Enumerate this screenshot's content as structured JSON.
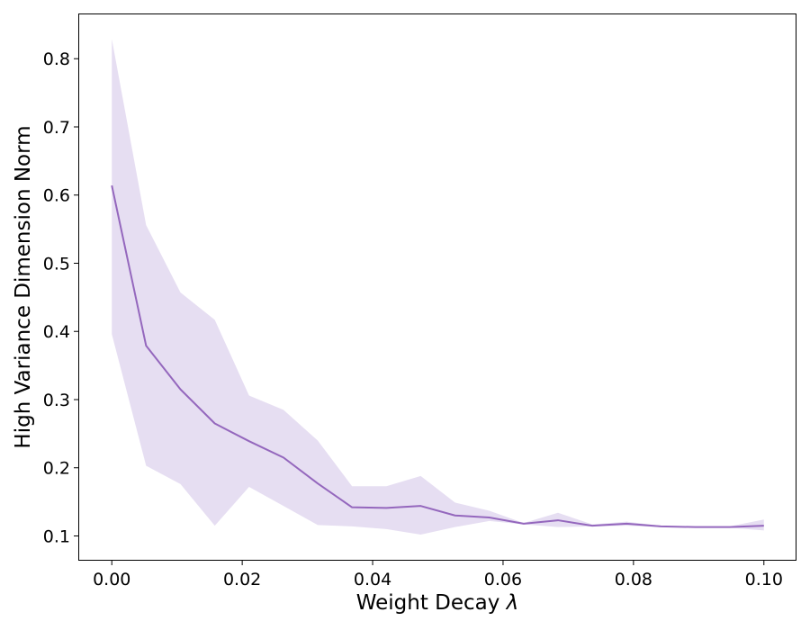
{
  "chart_data": {
    "type": "line",
    "title": "",
    "xlabel_text": "Weight Decay ",
    "xlabel_symbol": "λ",
    "ylabel": "High Variance Dimension Norm",
    "xlim": [
      -0.005,
      0.105
    ],
    "ylim": [
      0.065,
      0.865
    ],
    "xticks": [
      0.0,
      0.02,
      0.04,
      0.06,
      0.08,
      0.1
    ],
    "xtick_labels": [
      "0.00",
      "0.02",
      "0.04",
      "0.06",
      "0.08",
      "0.10"
    ],
    "yticks": [
      0.1,
      0.2,
      0.3,
      0.4,
      0.5,
      0.6,
      0.7,
      0.8
    ],
    "ytick_labels": [
      "0.1",
      "0.2",
      "0.3",
      "0.4",
      "0.5",
      "0.6",
      "0.7",
      "0.8"
    ],
    "grid": false,
    "legend": "none",
    "colors": {
      "line": "#9467bd",
      "band": "#e6def2"
    },
    "series": [
      {
        "x": [
          0.0,
          0.00526,
          0.01053,
          0.01579,
          0.02105,
          0.02632,
          0.03158,
          0.03684,
          0.04211,
          0.04737,
          0.05263,
          0.05789,
          0.06316,
          0.06842,
          0.07368,
          0.07895,
          0.08421,
          0.08947,
          0.09474,
          0.1
        ],
        "values": [
          0.614,
          0.379,
          0.315,
          0.265,
          0.239,
          0.215,
          0.177,
          0.142,
          0.141,
          0.144,
          0.13,
          0.127,
          0.118,
          0.123,
          0.115,
          0.118,
          0.114,
          0.113,
          0.113,
          0.115
        ],
        "lower": [
          0.396,
          0.203,
          0.176,
          0.115,
          0.172,
          0.144,
          0.116,
          0.114,
          0.11,
          0.102,
          0.113,
          0.122,
          0.117,
          0.113,
          0.114,
          0.115,
          0.113,
          0.112,
          0.112,
          0.108
        ],
        "upper": [
          0.829,
          0.556,
          0.457,
          0.417,
          0.306,
          0.285,
          0.24,
          0.173,
          0.173,
          0.188,
          0.149,
          0.137,
          0.119,
          0.134,
          0.117,
          0.121,
          0.115,
          0.114,
          0.114,
          0.124
        ]
      }
    ]
  }
}
